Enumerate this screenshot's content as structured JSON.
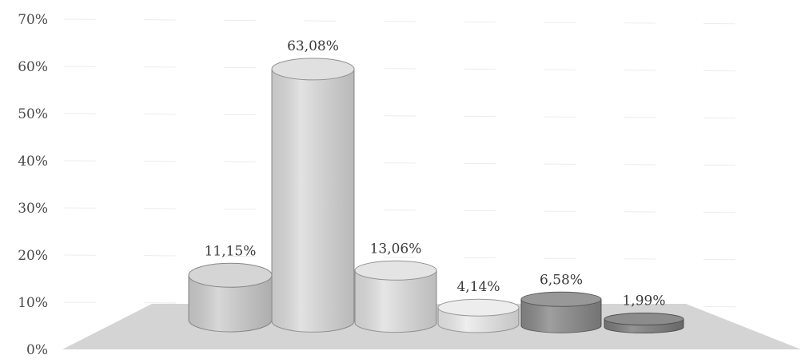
{
  "chart_data": {
    "type": "bar",
    "style": "3d-cylinder",
    "values": [
      11.15,
      63.08,
      13.06,
      4.14,
      6.58,
      1.99
    ],
    "data_labels": [
      "11,15%",
      "63,08%",
      "13,06%",
      "4,14%",
      "6,58%",
      "1,99%"
    ],
    "colors": [
      "#cfcfcf",
      "#dcdcdc",
      "#e0e0e0",
      "#ebebeb",
      "#8a8a8a",
      "#7c7c7c"
    ],
    "y_ticks": [
      "0%",
      "10%",
      "20%",
      "30%",
      "40%",
      "50%",
      "60%",
      "70%"
    ],
    "ylim": [
      0,
      70
    ],
    "grid": true,
    "floor_color": "#d4d4d4"
  }
}
